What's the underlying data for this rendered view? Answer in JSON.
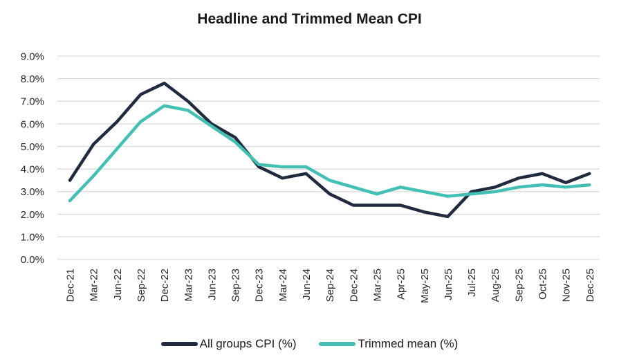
{
  "chart_data": {
    "type": "line",
    "title": "Headline and Trimmed Mean CPI",
    "categories": [
      "Dec-21",
      "Mar-22",
      "Jun-22",
      "Sep-22",
      "Dec-22",
      "Mar-23",
      "Jun-23",
      "Sep-23",
      "Dec-23",
      "Mar-24",
      "Jun-24",
      "Sep-24",
      "Dec-24",
      "Mar-25",
      "Apr-25",
      "May-25",
      "Jun-25",
      "Jul-25",
      "Aug-25",
      "Sep-25",
      "Oct-25",
      "Nov-25",
      "Dec-25"
    ],
    "series": [
      {
        "name": "All groups CPI (%)",
        "color": "#212b3f",
        "values": [
          3.5,
          5.1,
          6.1,
          7.3,
          7.8,
          7.0,
          6.0,
          5.4,
          4.1,
          3.6,
          3.8,
          2.9,
          2.4,
          2.4,
          2.4,
          2.1,
          1.9,
          3.0,
          3.2,
          3.6,
          3.8,
          3.4,
          3.8
        ]
      },
      {
        "name": "Trimmed mean (%)",
        "color": "#44bfb4",
        "values": [
          2.6,
          3.7,
          4.9,
          6.1,
          6.8,
          6.6,
          5.9,
          5.2,
          4.2,
          4.1,
          4.1,
          3.5,
          3.2,
          2.9,
          3.2,
          3.0,
          2.8,
          2.9,
          3.0,
          3.2,
          3.3,
          3.2,
          3.3
        ]
      }
    ],
    "y_ticks": [
      "9.0%",
      "8.0%",
      "7.0%",
      "6.0%",
      "5.0%",
      "4.0%",
      "3.0%",
      "2.0%",
      "1.0%",
      "0.0%"
    ],
    "ylim": [
      0,
      9
    ],
    "xlabel": "",
    "ylabel": "",
    "grid": "horizontal",
    "gridline_color": "#d9d9d9",
    "axis_label_color": "#262626",
    "legend_position": "bottom"
  }
}
